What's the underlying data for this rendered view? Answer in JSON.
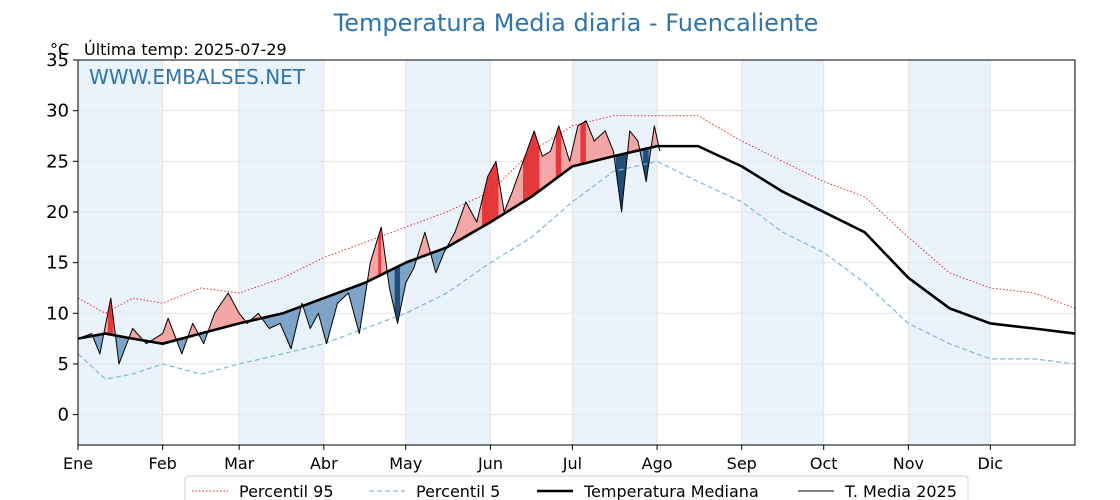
{
  "chart_data": {
    "type": "line",
    "title": "Temperatura Media diaria - Fuencaliente",
    "ylabel": "°C",
    "subtitle": "Última temp: 2025-07-29",
    "watermark": "WWW.EMBALSES.NET",
    "ylim": [
      -3,
      35
    ],
    "yticks": [
      0,
      5,
      10,
      15,
      20,
      25,
      30,
      35
    ],
    "xlim": [
      0,
      365
    ],
    "months": [
      {
        "label": "Ene",
        "day": 0
      },
      {
        "label": "Feb",
        "day": 31
      },
      {
        "label": "Mar",
        "day": 59
      },
      {
        "label": "Abr",
        "day": 90
      },
      {
        "label": "May",
        "day": 120
      },
      {
        "label": "Jun",
        "day": 151
      },
      {
        "label": "Jul",
        "day": 181
      },
      {
        "label": "Ago",
        "day": 212
      },
      {
        "label": "Sep",
        "day": 243
      },
      {
        "label": "Oct",
        "day": 273
      },
      {
        "label": "Nov",
        "day": 304
      },
      {
        "label": "Dic",
        "day": 334
      }
    ],
    "grid": true,
    "legend_position": "bottom",
    "colors": {
      "p95": "#e31a1c",
      "p5": "#7fb9d6",
      "median": "#000000",
      "current": "#000000",
      "above_fill": "#f4a6a6",
      "above_strong": "#e5383b",
      "below_fill": "#7da3c8",
      "below_strong": "#1f4e79",
      "band": "#eaf2fb",
      "title": "#2f75ad"
    },
    "series": [
      {
        "name": "Percentil 95",
        "style": "dotted",
        "points": [
          [
            0,
            11.5
          ],
          [
            10,
            10
          ],
          [
            20,
            11.5
          ],
          [
            31,
            11
          ],
          [
            45,
            12.5
          ],
          [
            59,
            12
          ],
          [
            75,
            13.5
          ],
          [
            90,
            15.5
          ],
          [
            105,
            17
          ],
          [
            120,
            18.5
          ],
          [
            135,
            20
          ],
          [
            151,
            22
          ],
          [
            166,
            26
          ],
          [
            181,
            28.5
          ],
          [
            196,
            29.5
          ],
          [
            212,
            29.5
          ],
          [
            227,
            29.5
          ],
          [
            243,
            27
          ],
          [
            258,
            25
          ],
          [
            273,
            23
          ],
          [
            288,
            21.5
          ],
          [
            304,
            17.5
          ],
          [
            319,
            14
          ],
          [
            334,
            12.5
          ],
          [
            350,
            12
          ],
          [
            365,
            10.5
          ]
        ]
      },
      {
        "name": "Percentil 5",
        "style": "dashed",
        "points": [
          [
            0,
            6
          ],
          [
            10,
            3.5
          ],
          [
            20,
            4
          ],
          [
            31,
            5
          ],
          [
            45,
            4
          ],
          [
            59,
            5
          ],
          [
            75,
            6
          ],
          [
            90,
            7
          ],
          [
            105,
            8.5
          ],
          [
            120,
            10
          ],
          [
            135,
            12
          ],
          [
            151,
            15
          ],
          [
            166,
            17.5
          ],
          [
            181,
            21
          ],
          [
            196,
            24
          ],
          [
            212,
            25
          ],
          [
            227,
            23
          ],
          [
            243,
            21
          ],
          [
            258,
            18
          ],
          [
            273,
            16
          ],
          [
            288,
            13
          ],
          [
            304,
            9
          ],
          [
            319,
            7
          ],
          [
            334,
            5.5
          ],
          [
            350,
            5.5
          ],
          [
            365,
            5
          ]
        ]
      },
      {
        "name": "Temperatura Mediana",
        "style": "solid-thick",
        "points": [
          [
            0,
            7.5
          ],
          [
            10,
            8
          ],
          [
            20,
            7.5
          ],
          [
            31,
            7
          ],
          [
            45,
            8
          ],
          [
            59,
            9
          ],
          [
            75,
            10
          ],
          [
            90,
            11.5
          ],
          [
            105,
            13
          ],
          [
            120,
            15
          ],
          [
            135,
            16.5
          ],
          [
            151,
            19
          ],
          [
            166,
            21.5
          ],
          [
            181,
            24.5
          ],
          [
            196,
            25.5
          ],
          [
            212,
            26.5
          ],
          [
            227,
            26.5
          ],
          [
            243,
            24.5
          ],
          [
            258,
            22
          ],
          [
            273,
            20
          ],
          [
            288,
            18
          ],
          [
            304,
            13.5
          ],
          [
            319,
            10.5
          ],
          [
            334,
            9
          ],
          [
            350,
            8.5
          ],
          [
            365,
            8
          ]
        ]
      },
      {
        "name": "T. Media 2025",
        "style": "solid-thin",
        "points": [
          [
            0,
            7.5
          ],
          [
            5,
            8
          ],
          [
            8,
            6
          ],
          [
            12,
            11.5
          ],
          [
            15,
            5
          ],
          [
            20,
            8.5
          ],
          [
            25,
            7
          ],
          [
            31,
            8
          ],
          [
            33,
            9.5
          ],
          [
            38,
            6
          ],
          [
            42,
            9
          ],
          [
            46,
            7
          ],
          [
            50,
            10
          ],
          [
            55,
            12
          ],
          [
            59,
            10
          ],
          [
            62,
            9
          ],
          [
            66,
            10
          ],
          [
            70,
            8.5
          ],
          [
            74,
            9
          ],
          [
            78,
            6.5
          ],
          [
            82,
            11
          ],
          [
            85,
            8.5
          ],
          [
            88,
            10
          ],
          [
            91,
            7
          ],
          [
            95,
            11
          ],
          [
            99,
            12
          ],
          [
            103,
            8
          ],
          [
            107,
            15
          ],
          [
            111,
            18.5
          ],
          [
            114,
            12.5
          ],
          [
            117,
            9
          ],
          [
            120,
            13
          ],
          [
            123,
            14.5
          ],
          [
            127,
            18
          ],
          [
            131,
            14
          ],
          [
            134,
            16
          ],
          [
            138,
            18
          ],
          [
            142,
            21
          ],
          [
            146,
            19
          ],
          [
            150,
            23.5
          ],
          [
            153,
            25
          ],
          [
            156,
            20
          ],
          [
            159,
            22
          ],
          [
            163,
            25
          ],
          [
            167,
            28
          ],
          [
            170,
            25.5
          ],
          [
            173,
            26
          ],
          [
            176,
            28.5
          ],
          [
            180,
            25
          ],
          [
            183,
            28.5
          ],
          [
            186,
            29
          ],
          [
            189,
            27
          ],
          [
            193,
            28
          ],
          [
            196,
            26
          ],
          [
            199,
            20
          ],
          [
            202,
            28
          ],
          [
            205,
            27
          ],
          [
            208,
            23
          ],
          [
            211,
            28.5
          ],
          [
            213,
            26
          ]
        ]
      }
    ]
  }
}
